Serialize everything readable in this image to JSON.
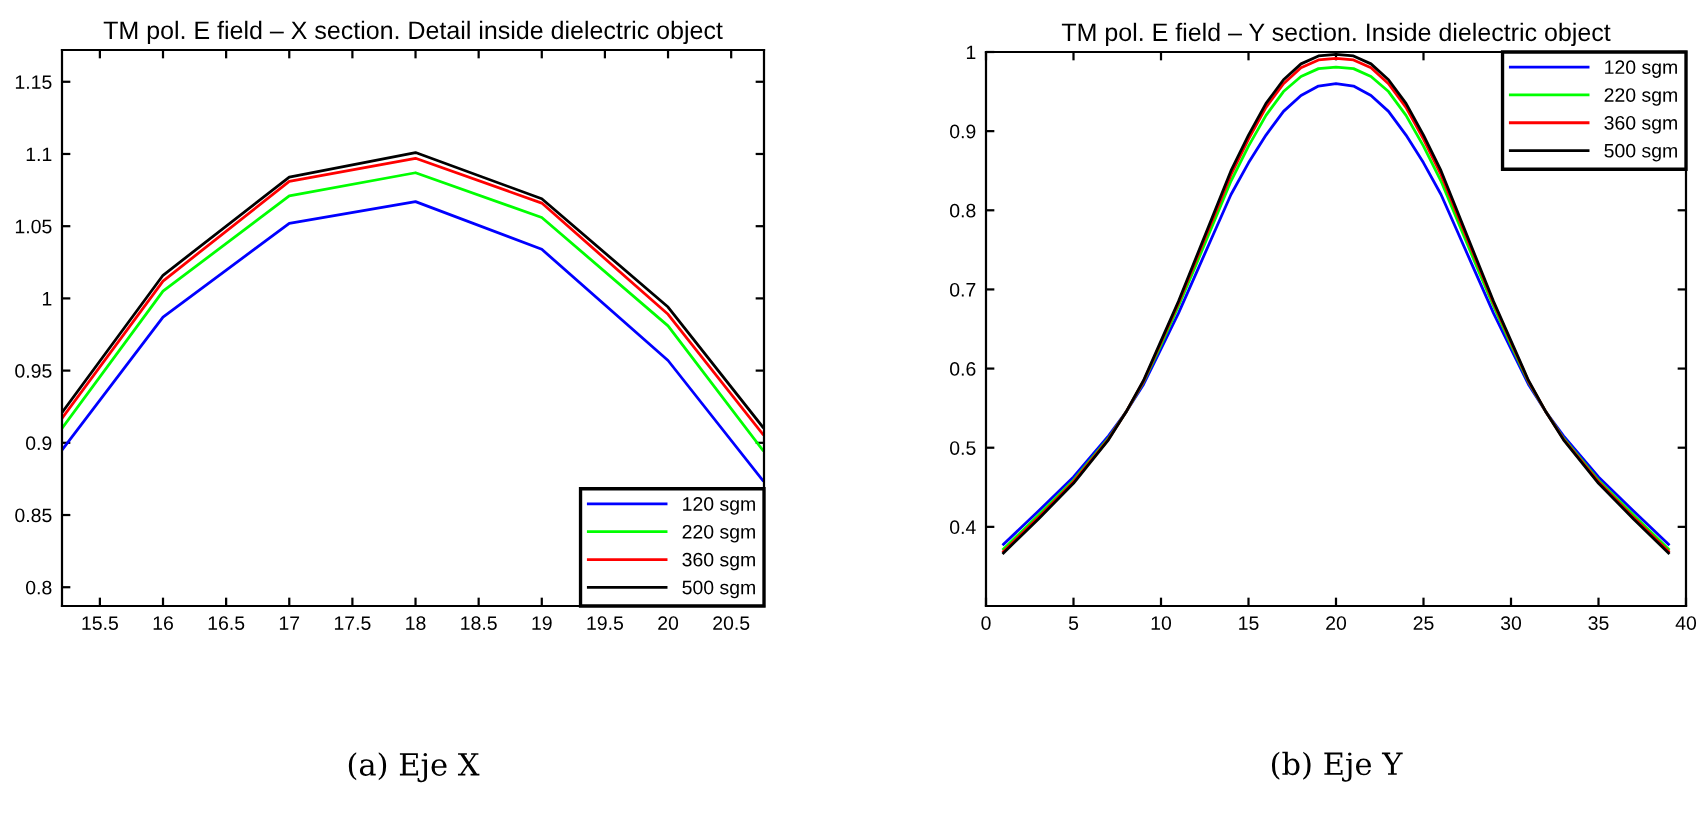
{
  "chart_data": [
    {
      "type": "line",
      "title": "TM pol. E field – X section. Detail inside dielectric object",
      "annotations": [
        "(a) Eje X"
      ],
      "x": [
        15.2,
        16,
        17,
        18,
        19,
        20,
        20.75
      ],
      "series": [
        {
          "name": "120 sgm",
          "color": "#0000ff",
          "values": [
            0.895,
            0.987,
            1.052,
            1.067,
            1.034,
            0.957,
            0.874
          ]
        },
        {
          "name": "220 sgm",
          "color": "#00ff00",
          "values": [
            0.91,
            1.005,
            1.071,
            1.087,
            1.056,
            0.981,
            0.895
          ]
        },
        {
          "name": "360 sgm",
          "color": "#ff0000",
          "values": [
            0.917,
            1.012,
            1.081,
            1.097,
            1.066,
            0.989,
            0.906
          ]
        },
        {
          "name": "500 sgm",
          "color": "#000000",
          "values": [
            0.921,
            1.016,
            1.084,
            1.101,
            1.069,
            0.994,
            0.911
          ]
        }
      ],
      "xlim": [
        15.2,
        20.76
      ],
      "xticks": [
        15.5,
        16,
        16.5,
        17,
        17.5,
        18,
        18.5,
        19,
        19.5,
        20,
        20.5
      ],
      "ylim": [
        0.787,
        1.172
      ],
      "yticks": [
        0.8,
        0.85,
        0.9,
        0.95,
        1,
        1.05,
        1.1,
        1.15
      ],
      "grid": false,
      "legend": "bottom right",
      "marker": "none",
      "line_style": "solid"
    },
    {
      "type": "line",
      "title": "TM pol. E field – Y section. Inside dielectric object",
      "annotations": [
        "(b) Eje Y"
      ],
      "x": [
        1,
        3,
        5,
        7,
        8,
        9,
        10,
        11,
        12,
        13,
        14,
        15,
        16,
        17,
        18,
        19,
        20,
        21,
        22,
        23,
        24,
        25,
        26,
        27,
        28,
        29,
        30,
        31,
        32,
        33,
        35,
        37,
        39
      ],
      "series": [
        {
          "name": "120 sgm",
          "color": "#0000ff",
          "values": [
            0.378,
            0.42,
            0.463,
            0.515,
            0.545,
            0.58,
            0.625,
            0.67,
            0.72,
            0.77,
            0.82,
            0.86,
            0.895,
            0.925,
            0.945,
            0.957,
            0.96,
            0.957,
            0.945,
            0.925,
            0.895,
            0.86,
            0.82,
            0.77,
            0.72,
            0.67,
            0.625,
            0.58,
            0.545,
            0.515,
            0.463,
            0.42,
            0.378
          ]
        },
        {
          "name": "220 sgm",
          "color": "#00ff00",
          "values": [
            0.372,
            0.415,
            0.459,
            0.512,
            0.545,
            0.583,
            0.63,
            0.679,
            0.731,
            0.784,
            0.837,
            0.881,
            0.92,
            0.95,
            0.969,
            0.979,
            0.981,
            0.979,
            0.969,
            0.95,
            0.92,
            0.881,
            0.837,
            0.784,
            0.731,
            0.679,
            0.63,
            0.583,
            0.545,
            0.512,
            0.459,
            0.415,
            0.372
          ]
        },
        {
          "name": "360 sgm",
          "color": "#ff0000",
          "values": [
            0.369,
            0.412,
            0.457,
            0.511,
            0.545,
            0.584,
            0.633,
            0.683,
            0.737,
            0.791,
            0.845,
            0.89,
            0.93,
            0.96,
            0.98,
            0.99,
            0.992,
            0.99,
            0.98,
            0.96,
            0.93,
            0.89,
            0.845,
            0.791,
            0.737,
            0.683,
            0.633,
            0.584,
            0.545,
            0.511,
            0.457,
            0.412,
            0.369
          ]
        },
        {
          "name": "500 sgm",
          "color": "#000000",
          "values": [
            0.367,
            0.41,
            0.455,
            0.51,
            0.545,
            0.585,
            0.635,
            0.685,
            0.74,
            0.795,
            0.85,
            0.895,
            0.935,
            0.965,
            0.985,
            0.995,
            0.997,
            0.995,
            0.985,
            0.965,
            0.935,
            0.895,
            0.85,
            0.795,
            0.74,
            0.685,
            0.635,
            0.585,
            0.545,
            0.51,
            0.455,
            0.41,
            0.367
          ]
        }
      ],
      "xlim": [
        0,
        40
      ],
      "xticks": [
        0,
        5,
        10,
        15,
        20,
        25,
        30,
        35,
        40
      ],
      "ylim": [
        0.3,
        1
      ],
      "yticks": [
        0.4,
        0.5,
        0.6,
        0.7,
        0.8,
        0.9,
        1
      ],
      "grid": false,
      "legend": "top right",
      "marker": "none",
      "line_style": "solid"
    }
  ]
}
